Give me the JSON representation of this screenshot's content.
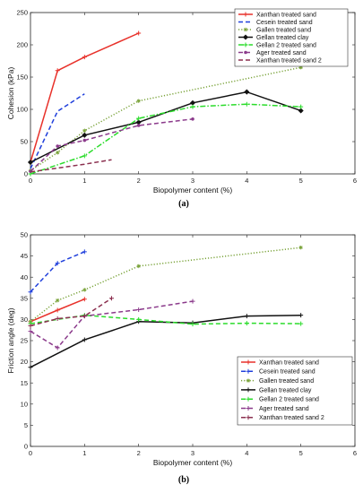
{
  "chart_data": [
    {
      "type": "line",
      "caption": "(a)",
      "xlabel": "Biopolymer content (%)",
      "ylabel": "Cohesion (kPa)",
      "xlim": [
        0,
        6
      ],
      "ylim": [
        0,
        250
      ],
      "xticks": [
        0,
        1,
        2,
        3,
        4,
        5,
        6
      ],
      "yticks": [
        0,
        50,
        100,
        150,
        200,
        250
      ],
      "legend_position": "top-right",
      "grid": false,
      "series": [
        {
          "name": "Xanthan treated sand",
          "color": "#e8312a",
          "dash": "solid",
          "marker": "plus",
          "x": [
            0,
            0.5,
            1,
            2
          ],
          "y": [
            18,
            160,
            181,
            218
          ]
        },
        {
          "name": "Cesein treated sand",
          "color": "#1f3fdc",
          "dash": "dashed",
          "marker": "none",
          "x": [
            0,
            0.5,
            1
          ],
          "y": [
            8,
            97,
            124
          ]
        },
        {
          "name": "Gallen treated sand",
          "color": "#7aa33a",
          "dash": "dotted",
          "marker": "star",
          "x": [
            0,
            0.5,
            1,
            2,
            5
          ],
          "y": [
            5,
            33,
            67,
            113,
            165
          ]
        },
        {
          "name": "Gellan treated clay",
          "color": "#111111",
          "dash": "solid",
          "marker": "diamond",
          "x": [
            0,
            1,
            2,
            3,
            4,
            5
          ],
          "y": [
            18,
            60,
            80,
            110,
            127,
            98
          ]
        },
        {
          "name": "Gellan 2 treated sand",
          "color": "#2bdc2b",
          "dash": "dashdot",
          "marker": "plus",
          "x": [
            0,
            1,
            2,
            3,
            4,
            5
          ],
          "y": [
            0,
            28,
            86,
            104,
            108,
            104
          ]
        },
        {
          "name": "Ager treated sand",
          "color": "#8b3a8b",
          "dash": "dashed",
          "marker": "dot",
          "x": [
            0,
            0.5,
            1,
            2,
            3
          ],
          "y": [
            4,
            43,
            52,
            75,
            85
          ]
        },
        {
          "name": "Xanthan treated sand 2",
          "color": "#8b2f4f",
          "dash": "dashed",
          "marker": "none",
          "x": [
            0,
            1,
            1.5
          ],
          "y": [
            3,
            15,
            22
          ]
        }
      ]
    },
    {
      "type": "line",
      "caption": "(b)",
      "xlabel": "Biopolymer content (%)",
      "ylabel": "Friction angle (deg)",
      "xlim": [
        0,
        6
      ],
      "ylim": [
        0,
        50
      ],
      "xticks": [
        0,
        1,
        2,
        3,
        4,
        5,
        6
      ],
      "yticks": [
        0,
        5,
        10,
        15,
        20,
        25,
        30,
        35,
        40,
        45,
        50
      ],
      "legend_position": "bottom-right",
      "grid": false,
      "series": [
        {
          "name": "Xanthan treated sand",
          "color": "#e8312a",
          "dash": "solid",
          "marker": "plus",
          "x": [
            0,
            0.5,
            1
          ],
          "y": [
            29.5,
            32.2,
            34.8
          ]
        },
        {
          "name": "Cesein treated sand",
          "color": "#1f3fdc",
          "dash": "dashed",
          "marker": "plus",
          "x": [
            0,
            0.5,
            1
          ],
          "y": [
            36.5,
            43.3,
            46
          ]
        },
        {
          "name": "Gallen treated sand",
          "color": "#7aa33a",
          "dash": "dotted",
          "marker": "star",
          "x": [
            0,
            0.5,
            1,
            2,
            5
          ],
          "y": [
            29.5,
            34.5,
            37,
            42.6,
            47
          ]
        },
        {
          "name": "Gellan treated clay",
          "color": "#111111",
          "dash": "solid",
          "marker": "plus",
          "x": [
            0,
            1,
            2,
            3,
            4,
            5
          ],
          "y": [
            18.7,
            25.2,
            29.5,
            29.2,
            30.8,
            31
          ]
        },
        {
          "name": "Gellan 2 treated sand",
          "color": "#2bdc2b",
          "dash": "dashed",
          "marker": "plus",
          "x": [
            0,
            1,
            2,
            3,
            4,
            5
          ],
          "y": [
            29,
            31,
            30,
            28.9,
            29.1,
            29
          ]
        },
        {
          "name": "Ager treated sand",
          "color": "#8b3a8b",
          "dash": "dashed",
          "marker": "plus",
          "x": [
            0,
            0.5,
            1,
            2,
            3
          ],
          "y": [
            27.2,
            23.3,
            30.8,
            32.3,
            34.3
          ]
        },
        {
          "name": "Xanthan treated sand 2",
          "color": "#8b2f4f",
          "dash": "dashed",
          "marker": "plus",
          "x": [
            0,
            0.5,
            1,
            1.5
          ],
          "y": [
            28.5,
            30.2,
            30.8,
            35
          ]
        }
      ]
    }
  ]
}
